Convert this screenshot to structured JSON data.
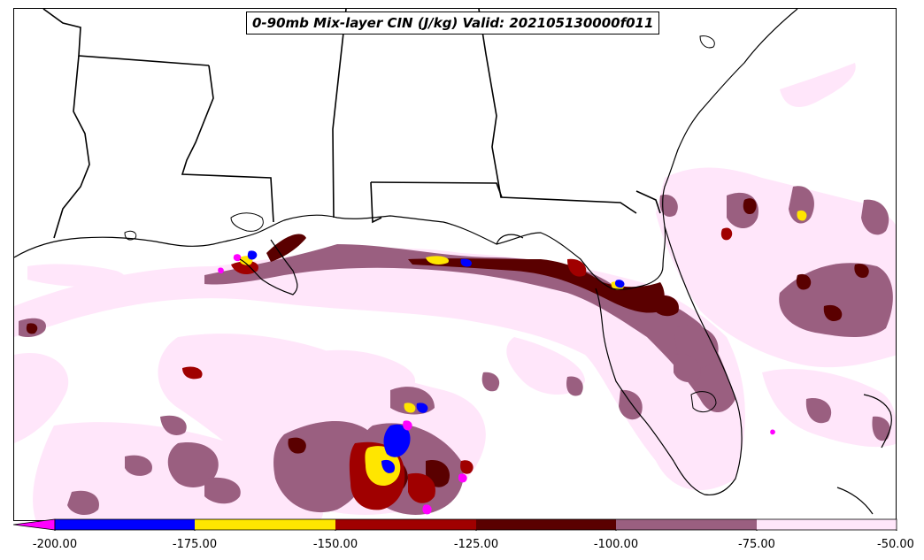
{
  "title": "0-90mb Mix-layer CIN (J/kg) Valid: 202105130000f011",
  "colorbar": {
    "extend": "min",
    "ticks": [
      "-200.00",
      "-175.00",
      "-150.00",
      "-125.00",
      "-100.00",
      "-75.00",
      "-50.00"
    ],
    "levels": [
      {
        "from": -200,
        "to": -175,
        "color": "#0000ff"
      },
      {
        "from": -175,
        "to": -150,
        "color": "#ffe600"
      },
      {
        "from": -150,
        "to": -125,
        "color": "#a00000"
      },
      {
        "from": -125,
        "to": -100,
        "color": "#5a0000"
      },
      {
        "from": -100,
        "to": -75,
        "color": "#9a5f80"
      },
      {
        "from": -75,
        "to": -50,
        "color": "#ffe6fa"
      }
    ],
    "under_color": "#ff00ff"
  },
  "map": {
    "region": "Gulf of Mexico / Southeastern US",
    "coastline_color": "#000000",
    "border_color": "#000000"
  }
}
